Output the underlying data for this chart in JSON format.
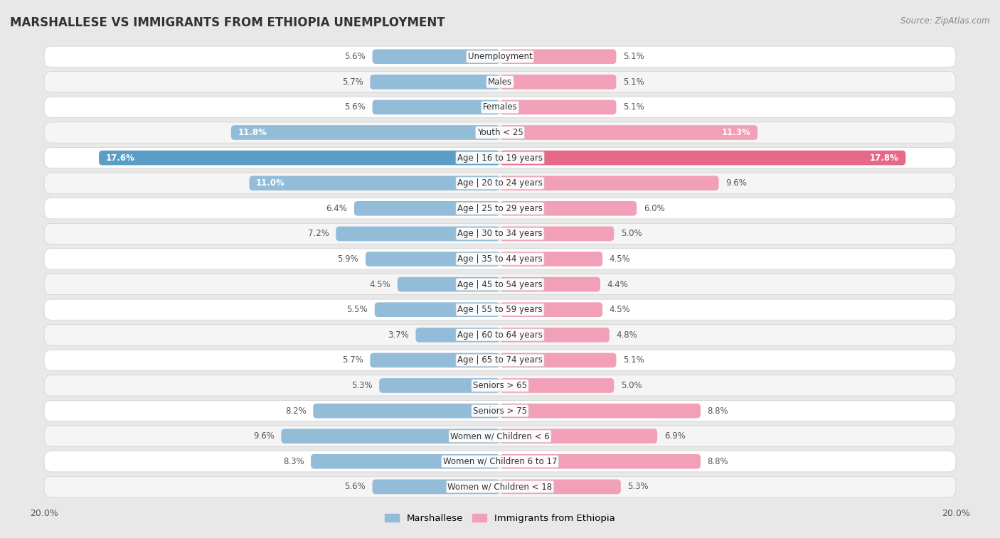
{
  "title": "MARSHALLESE VS IMMIGRANTS FROM ETHIOPIA UNEMPLOYMENT",
  "source": "Source: ZipAtlas.com",
  "categories": [
    "Unemployment",
    "Males",
    "Females",
    "Youth < 25",
    "Age | 16 to 19 years",
    "Age | 20 to 24 years",
    "Age | 25 to 29 years",
    "Age | 30 to 34 years",
    "Age | 35 to 44 years",
    "Age | 45 to 54 years",
    "Age | 55 to 59 years",
    "Age | 60 to 64 years",
    "Age | 65 to 74 years",
    "Seniors > 65",
    "Seniors > 75",
    "Women w/ Children < 6",
    "Women w/ Children 6 to 17",
    "Women w/ Children < 18"
  ],
  "marshallese": [
    5.6,
    5.7,
    5.6,
    11.8,
    17.6,
    11.0,
    6.4,
    7.2,
    5.9,
    4.5,
    5.5,
    3.7,
    5.7,
    5.3,
    8.2,
    9.6,
    8.3,
    5.6
  ],
  "ethiopia": [
    5.1,
    5.1,
    5.1,
    11.3,
    17.8,
    9.6,
    6.0,
    5.0,
    4.5,
    4.4,
    4.5,
    4.8,
    5.1,
    5.0,
    8.8,
    6.9,
    8.8,
    5.3
  ],
  "marshallese_color": "#92bcd8",
  "ethiopia_color": "#f2a0b8",
  "highlight_marshallese_color": "#5a9ec8",
  "highlight_ethiopia_color": "#e86888",
  "axis_max": 20.0,
  "outer_bg_color": "#e8e8e8",
  "row_bg_color": "#f5f5f5",
  "row_alt_bg_color": "#ffffff",
  "legend_marshallese": "Marshallese",
  "legend_ethiopia": "Immigrants from Ethiopia",
  "value_label_color": "#555555",
  "category_label_color": "#333333"
}
